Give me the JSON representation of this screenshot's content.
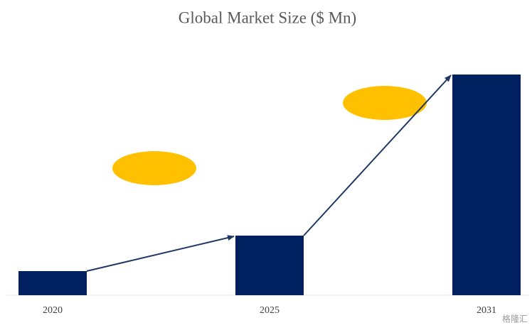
{
  "chart_data": {
    "type": "bar",
    "title": "Global Market Size ($ Mn)",
    "categories": [
      "2020",
      "2025",
      "2031"
    ],
    "values": [
      34,
      84,
      311
    ],
    "color": "#002060"
  },
  "watermark": "格隆汇"
}
